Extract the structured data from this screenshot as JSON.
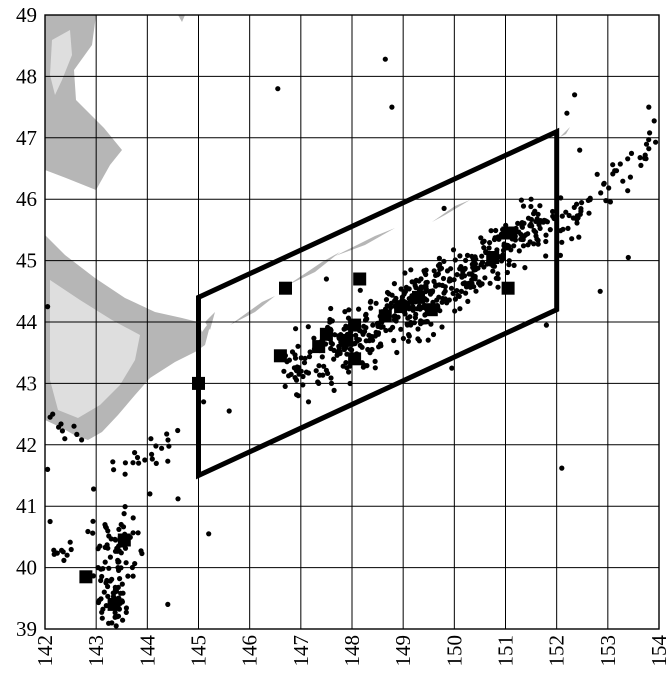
{
  "chart_data": {
    "type": "scatter",
    "title": "",
    "xlabel": "",
    "ylabel": "",
    "xlim": [
      142,
      154
    ],
    "ylim": [
      39,
      49
    ],
    "x_ticks": [
      "142",
      "143",
      "144",
      "145",
      "146",
      "147",
      "148",
      "149",
      "150",
      "151",
      "152",
      "153",
      "154"
    ],
    "y_ticks": [
      "39",
      "40",
      "41",
      "42",
      "43",
      "44",
      "45",
      "46",
      "47",
      "48",
      "49"
    ],
    "grid": true,
    "polygon": [
      [
        145,
        41.5
      ],
      [
        145,
        44.4
      ],
      [
        152,
        47.1
      ],
      [
        152,
        44.2
      ]
    ],
    "large_markers": [
      [
        142.8,
        39.85
      ],
      [
        143.35,
        39.4
      ],
      [
        143.55,
        40.45
      ],
      [
        145.0,
        43.0
      ],
      [
        146.6,
        43.45
      ],
      [
        146.7,
        44.55
      ],
      [
        147.35,
        43.6
      ],
      [
        147.5,
        43.8
      ],
      [
        147.9,
        43.7
      ],
      [
        148.05,
        43.4
      ],
      [
        148.05,
        43.95
      ],
      [
        148.15,
        44.7
      ],
      [
        148.65,
        44.1
      ],
      [
        148.95,
        44.25
      ],
      [
        149.3,
        44.4
      ],
      [
        149.55,
        44.2
      ],
      [
        150.75,
        45.05
      ],
      [
        151.05,
        44.55
      ],
      [
        151.05,
        45.45
      ]
    ],
    "colors": {
      "land": "#b6b6b6",
      "land_light": "#dedede",
      "points": "#000000",
      "grid": "#000000"
    }
  }
}
